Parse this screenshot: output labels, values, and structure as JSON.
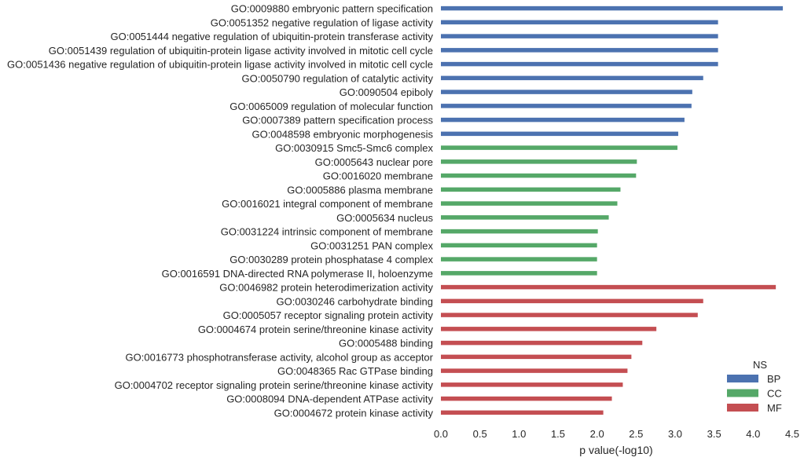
{
  "chart_data": {
    "type": "bar",
    "orientation": "horizontal",
    "xlabel": "p value(-log10)",
    "xlim": [
      0,
      4.5
    ],
    "xticks": [
      "0.0",
      "0.5",
      "1.0",
      "1.5",
      "2.0",
      "2.5",
      "3.0",
      "3.5",
      "4.0",
      "4.5"
    ],
    "grid": false,
    "legend": {
      "title": "NS",
      "placement": "bottom-right",
      "entries": [
        {
          "name": "BP",
          "color": "#4c72b0"
        },
        {
          "name": "CC",
          "color": "#55a868"
        },
        {
          "name": "MF",
          "color": "#c44e52"
        }
      ]
    },
    "bars": [
      {
        "label": "GO:0009880 embryonic pattern specification",
        "group": "BP",
        "value": 4.38
      },
      {
        "label": "GO:0051352 negative regulation of ligase activity",
        "group": "BP",
        "value": 3.55
      },
      {
        "label": "GO:0051444 negative regulation of ubiquitin-protein transferase activity",
        "group": "BP",
        "value": 3.55
      },
      {
        "label": "GO:0051439 regulation of ubiquitin-protein ligase activity involved in mitotic cell cycle",
        "group": "BP",
        "value": 3.55
      },
      {
        "label": "GO:0051436 negative regulation of ubiquitin-protein ligase activity involved in mitotic cell cycle",
        "group": "BP",
        "value": 3.55
      },
      {
        "label": "GO:0050790 regulation of catalytic activity",
        "group": "BP",
        "value": 3.36
      },
      {
        "label": "GO:0090504 epiboly",
        "group": "BP",
        "value": 3.22
      },
      {
        "label": "GO:0065009 regulation of molecular function",
        "group": "BP",
        "value": 3.21
      },
      {
        "label": "GO:0007389 pattern specification process",
        "group": "BP",
        "value": 3.12
      },
      {
        "label": "GO:0048598 embryonic morphogenesis",
        "group": "BP",
        "value": 3.04
      },
      {
        "label": "GO:0030915 Smc5-Smc6 complex",
        "group": "CC",
        "value": 3.03
      },
      {
        "label": "GO:0005643 nuclear pore",
        "group": "CC",
        "value": 2.51
      },
      {
        "label": "GO:0016020 membrane",
        "group": "CC",
        "value": 2.5
      },
      {
        "label": "GO:0005886 plasma membrane",
        "group": "CC",
        "value": 2.3
      },
      {
        "label": "GO:0016021 integral component of membrane",
        "group": "CC",
        "value": 2.26
      },
      {
        "label": "GO:0005634 nucleus",
        "group": "CC",
        "value": 2.15
      },
      {
        "label": "GO:0031224 intrinsic component of membrane",
        "group": "CC",
        "value": 2.01
      },
      {
        "label": "GO:0031251 PAN complex",
        "group": "CC",
        "value": 2.0
      },
      {
        "label": "GO:0030289 protein phosphatase 4 complex",
        "group": "CC",
        "value": 2.0
      },
      {
        "label": "GO:0016591 DNA-directed RNA polymerase II, holoenzyme",
        "group": "CC",
        "value": 2.0
      },
      {
        "label": "GO:0046982 protein heterodimerization activity",
        "group": "MF",
        "value": 4.29
      },
      {
        "label": "GO:0030246 carbohydrate binding",
        "group": "MF",
        "value": 3.36
      },
      {
        "label": "GO:0005057 receptor signaling protein activity",
        "group": "MF",
        "value": 3.29
      },
      {
        "label": "GO:0004674 protein serine/threonine kinase activity",
        "group": "MF",
        "value": 2.76
      },
      {
        "label": "GO:0005488 binding",
        "group": "MF",
        "value": 2.58
      },
      {
        "label": "GO:0016773 phosphotransferase activity, alcohol group as acceptor",
        "group": "MF",
        "value": 2.44
      },
      {
        "label": "GO:0048365 Rac GTPase binding",
        "group": "MF",
        "value": 2.39
      },
      {
        "label": "GO:0004702 receptor signaling protein serine/threonine kinase activity",
        "group": "MF",
        "value": 2.33
      },
      {
        "label": "GO:0008094 DNA-dependent ATPase activity",
        "group": "MF",
        "value": 2.19
      },
      {
        "label": "GO:0004672 protein kinase activity",
        "group": "MF",
        "value": 2.08
      }
    ]
  }
}
